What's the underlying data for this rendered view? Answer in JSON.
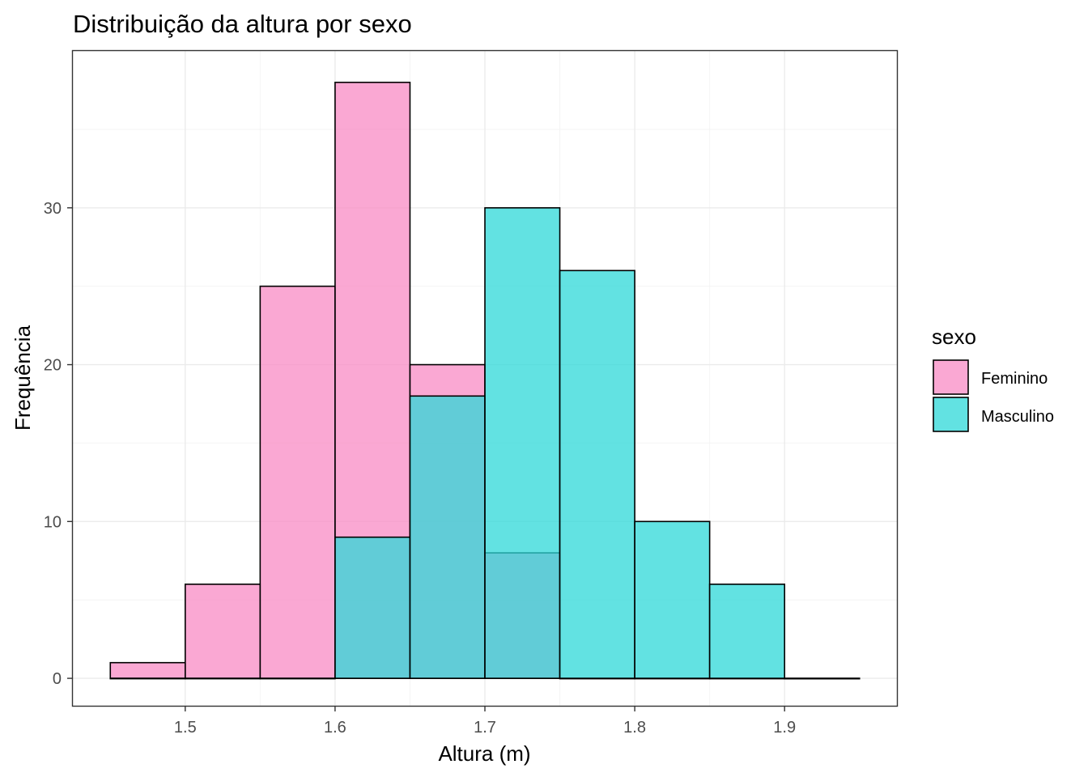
{
  "chart_data": {
    "type": "histogram",
    "title": "Distribuição da altura por sexo",
    "xlabel": "Altura (m)",
    "ylabel": "Frequência",
    "xlim": [
      1.425,
      1.975
    ],
    "ylim": [
      -1.75,
      40
    ],
    "x_ticks": [
      1.5,
      1.6,
      1.7,
      1.8,
      1.9
    ],
    "x_tick_labels": [
      "1.5",
      "1.6",
      "1.7",
      "1.8",
      "1.9"
    ],
    "y_ticks": [
      0,
      10,
      20,
      30
    ],
    "y_tick_labels": [
      "0",
      "10",
      "20",
      "30"
    ],
    "grid": true,
    "legend_position": "right",
    "legend_title": "sexo",
    "bin_width": 0.05,
    "bin_edges": [
      1.45,
      1.5,
      1.55,
      1.6,
      1.65,
      1.7,
      1.75,
      1.8,
      1.85,
      1.9,
      1.95
    ],
    "series": [
      {
        "name": "Feminino",
        "color": "#F88BC4",
        "values": [
          1,
          6,
          25,
          38,
          20,
          8,
          0,
          0,
          0,
          0
        ]
      },
      {
        "name": "Masculino",
        "color": "#2ED8D8",
        "values": [
          0,
          0,
          0,
          9,
          18,
          30,
          26,
          10,
          6,
          0
        ]
      }
    ]
  }
}
